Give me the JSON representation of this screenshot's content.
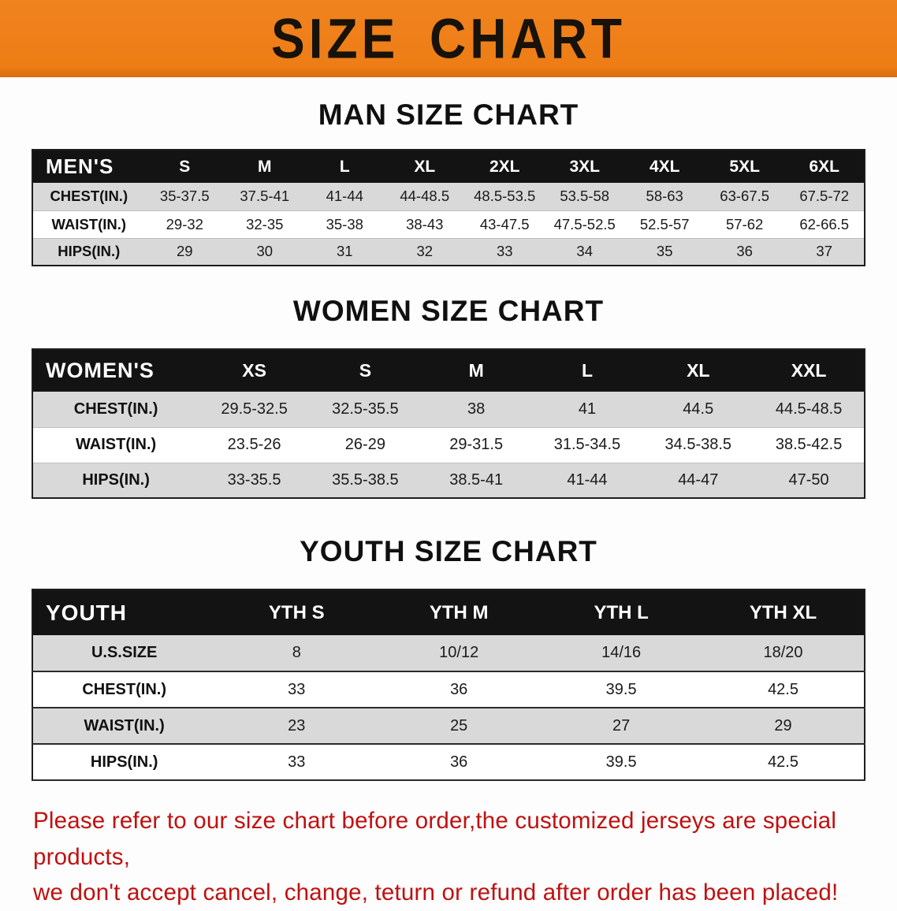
{
  "banner": {
    "title": "SIZE CHART"
  },
  "colors": {
    "banner_bg": "#f0831f",
    "header_bg": "#131313",
    "row_alt": "#d9d9d9",
    "footer_text": "#c01010"
  },
  "sections": [
    {
      "heading": "MAN SIZE CHART",
      "table": {
        "header": [
          "MEN'S",
          "S",
          "M",
          "L",
          "XL",
          "2XL",
          "3XL",
          "4XL",
          "5XL",
          "6XL"
        ],
        "rows": [
          [
            "CHEST(IN.)",
            "35-37.5",
            "37.5-41",
            "41-44",
            "44-48.5",
            "48.5-53.5",
            "53.5-58",
            "58-63",
            "63-67.5",
            "67.5-72"
          ],
          [
            "WAIST(IN.)",
            "29-32",
            "32-35",
            "35-38",
            "38-43",
            "43-47.5",
            "47.5-52.5",
            "52.5-57",
            "57-62",
            "62-66.5"
          ],
          [
            "HIPS(IN.)",
            "29",
            "30",
            "31",
            "32",
            "33",
            "34",
            "35",
            "36",
            "37"
          ]
        ]
      }
    },
    {
      "heading": "WOMEN SIZE CHART",
      "table": {
        "header": [
          "WOMEN'S",
          "XS",
          "S",
          "M",
          "L",
          "XL",
          "XXL"
        ],
        "rows": [
          [
            "CHEST(IN.)",
            "29.5-32.5",
            "32.5-35.5",
            "38",
            "41",
            "44.5",
            "44.5-48.5"
          ],
          [
            "WAIST(IN.)",
            "23.5-26",
            "26-29",
            "29-31.5",
            "31.5-34.5",
            "34.5-38.5",
            "38.5-42.5"
          ],
          [
            "HIPS(IN.)",
            "33-35.5",
            "35.5-38.5",
            "38.5-41",
            "41-44",
            "44-47",
            "47-50"
          ]
        ]
      }
    },
    {
      "heading": "YOUTH SIZE CHART",
      "table": {
        "header": [
          "YOUTH",
          "YTH S",
          "YTH M",
          "YTH L",
          "YTH XL"
        ],
        "rows": [
          [
            "U.S.SIZE",
            "8",
            "10/12",
            "14/16",
            "18/20"
          ],
          [
            "CHEST(IN.)",
            "33",
            "36",
            "39.5",
            "42.5"
          ],
          [
            "WAIST(IN.)",
            "23",
            "25",
            "27",
            "29"
          ],
          [
            "HIPS(IN.)",
            "33",
            "36",
            "39.5",
            "42.5"
          ]
        ]
      }
    }
  ],
  "footer": {
    "line1": "Please refer to our size chart before order,the customized jerseys are special products,",
    "line2": "we don't accept cancel, change, teturn or refund after order has been placed!"
  }
}
